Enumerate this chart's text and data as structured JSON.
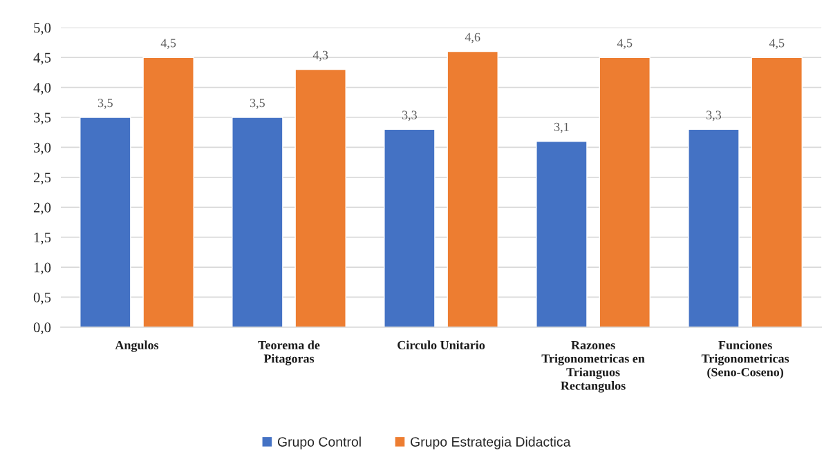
{
  "chart_data": {
    "type": "bar",
    "categories": [
      "Angulos",
      "Teorema de\nPitagoras",
      "Circulo Unitario",
      "Razones\nTrigonometricas en\nTrianguos\nRectangulos",
      "Funciones\nTrigonometricas\n(Seno-Coseno)"
    ],
    "series": [
      {
        "name": "Grupo Control",
        "color": "#4472c4",
        "values": [
          3.5,
          3.5,
          3.3,
          3.1,
          3.3
        ],
        "value_labels": [
          "3,5",
          "3,5",
          "3,3",
          "3,1",
          "3,3"
        ]
      },
      {
        "name": "Grupo Estrategia Didactica",
        "color": "#ed7d31",
        "values": [
          4.5,
          4.3,
          4.6,
          4.5,
          4.5
        ],
        "value_labels": [
          "4,5",
          "4,3",
          "4,6",
          "4,5",
          "4,5"
        ]
      }
    ],
    "ylim": [
      0,
      5
    ],
    "yticks": [
      {
        "value": 0,
        "label": "0,0"
      },
      {
        "value": 0.5,
        "label": "0,5"
      },
      {
        "value": 1,
        "label": "1,0"
      },
      {
        "value": 1.5,
        "label": "1,5"
      },
      {
        "value": 2,
        "label": "2,0"
      },
      {
        "value": 2.5,
        "label": "2,5"
      },
      {
        "value": 3,
        "label": "3,0"
      },
      {
        "value": 3.5,
        "label": "3,5"
      },
      {
        "value": 4,
        "label": "4,0"
      },
      {
        "value": 4.5,
        "label": "4,5"
      },
      {
        "value": 5,
        "label": "5,0"
      }
    ],
    "grid": "y",
    "legend": "bottom"
  }
}
